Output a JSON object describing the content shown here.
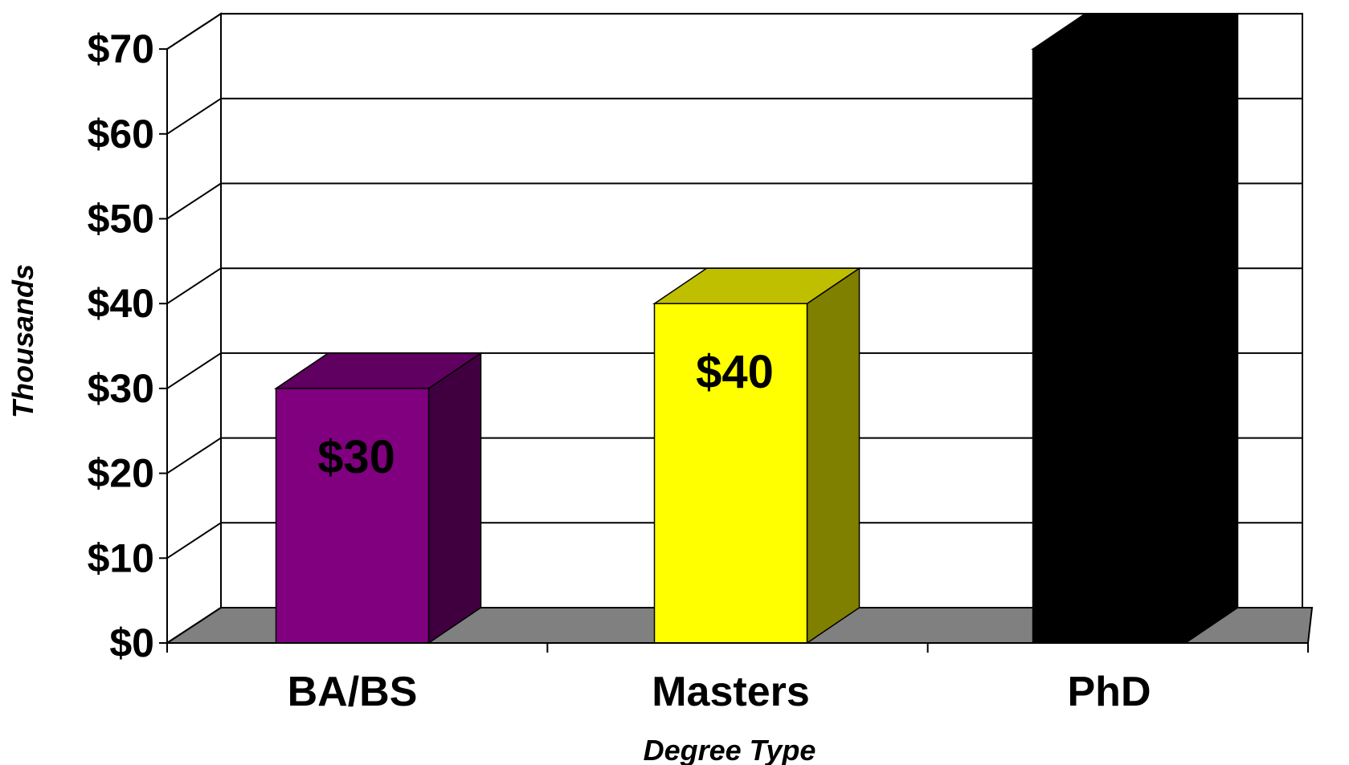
{
  "chart_data": {
    "type": "bar",
    "style": "3d",
    "categories": [
      "BA/BS",
      "Masters",
      "PhD"
    ],
    "values": [
      30,
      40,
      70
    ],
    "data_labels": [
      "$30",
      "$40",
      ""
    ],
    "bar_colors": [
      "#800080",
      "#ffff00",
      "#000000"
    ],
    "xlabel": "Degree Type",
    "ylabel": "Thousands",
    "ylim": [
      0,
      70
    ],
    "yticks": [
      0,
      10,
      20,
      30,
      40,
      50,
      60,
      70
    ],
    "ytick_labels": [
      "$0",
      "$10",
      "$20",
      "$30",
      "$40",
      "$50",
      "$60",
      "$70"
    ],
    "grid": true,
    "floor_color": "#808080",
    "legend": "none"
  }
}
